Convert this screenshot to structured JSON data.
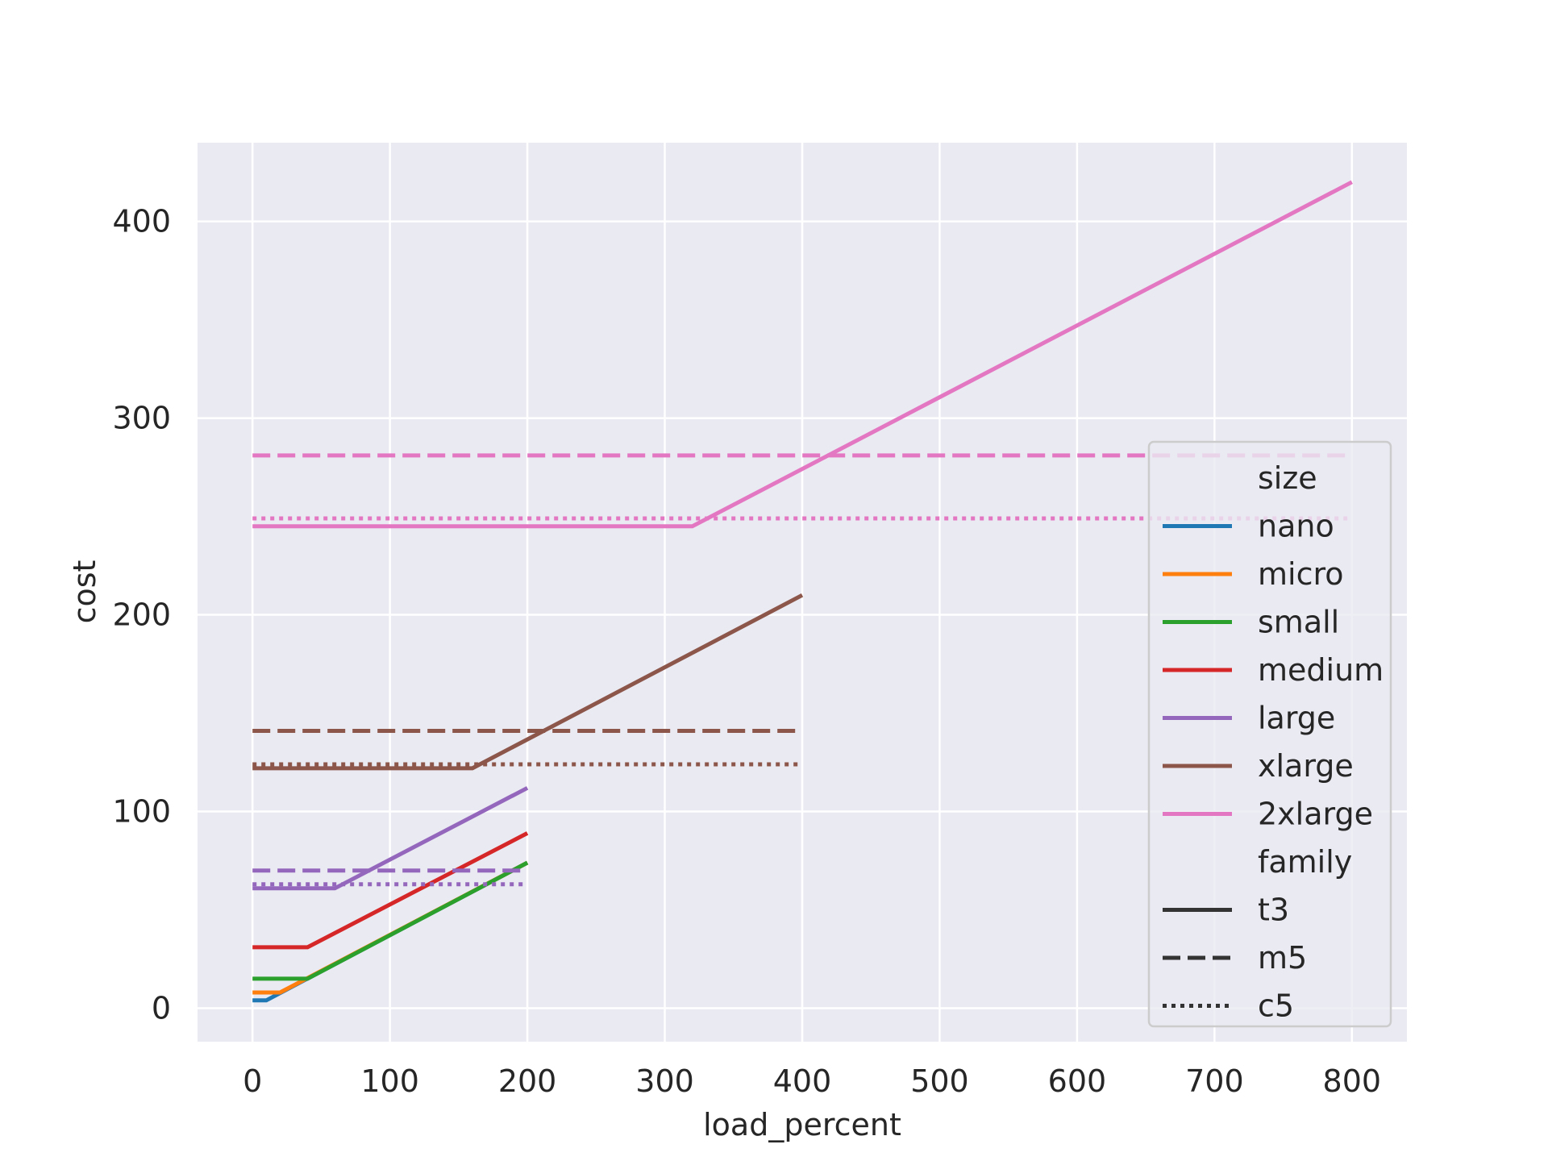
{
  "chart_data": {
    "type": "line",
    "xlabel": "load_percent",
    "ylabel": "cost",
    "xlim": [
      -40,
      840
    ],
    "ylim": [
      -17,
      440
    ],
    "xticks": [
      0,
      100,
      200,
      300,
      400,
      500,
      600,
      700,
      800
    ],
    "yticks": [
      0,
      100,
      200,
      300,
      400
    ],
    "grid": true,
    "legend_position": "lower-right",
    "legend": {
      "size_title": "size",
      "family_title": "family",
      "sizes": [
        {
          "name": "nano",
          "color": "#1f77b4"
        },
        {
          "name": "micro",
          "color": "#ff7f0e"
        },
        {
          "name": "small",
          "color": "#2ca02c"
        },
        {
          "name": "medium",
          "color": "#d62728"
        },
        {
          "name": "large",
          "color": "#9467bd"
        },
        {
          "name": "xlarge",
          "color": "#8c564b"
        },
        {
          "name": "2xlarge",
          "color": "#e377c2"
        }
      ],
      "families": [
        {
          "name": "t3",
          "style": "solid"
        },
        {
          "name": "m5",
          "style": "dashed"
        },
        {
          "name": "c5",
          "style": "dotted"
        }
      ]
    },
    "series": [
      {
        "size": "nano",
        "family": "t3",
        "x": [
          0,
          10,
          200
        ],
        "y": [
          4,
          4,
          74
        ]
      },
      {
        "size": "micro",
        "family": "t3",
        "x": [
          0,
          20,
          200
        ],
        "y": [
          8,
          8,
          74
        ]
      },
      {
        "size": "small",
        "family": "t3",
        "x": [
          0,
          40,
          200
        ],
        "y": [
          15,
          15,
          74
        ]
      },
      {
        "size": "medium",
        "family": "t3",
        "x": [
          0,
          40,
          200
        ],
        "y": [
          31,
          31,
          89
        ]
      },
      {
        "size": "large",
        "family": "t3",
        "x": [
          0,
          60,
          200
        ],
        "y": [
          61,
          61,
          112
        ]
      },
      {
        "size": "large",
        "family": "m5",
        "x": [
          0,
          200
        ],
        "y": [
          70,
          70
        ]
      },
      {
        "size": "large",
        "family": "c5",
        "x": [
          0,
          200
        ],
        "y": [
          63,
          63
        ]
      },
      {
        "size": "xlarge",
        "family": "t3",
        "x": [
          0,
          160,
          400
        ],
        "y": [
          122,
          122,
          210
        ]
      },
      {
        "size": "xlarge",
        "family": "m5",
        "x": [
          0,
          400
        ],
        "y": [
          141,
          141
        ]
      },
      {
        "size": "xlarge",
        "family": "c5",
        "x": [
          0,
          400
        ],
        "y": [
          124,
          124
        ]
      },
      {
        "size": "2xlarge",
        "family": "t3",
        "x": [
          0,
          320,
          800
        ],
        "y": [
          245,
          245,
          420
        ]
      },
      {
        "size": "2xlarge",
        "family": "m5",
        "x": [
          0,
          800
        ],
        "y": [
          281,
          281
        ]
      },
      {
        "size": "2xlarge",
        "family": "c5",
        "x": [
          0,
          800
        ],
        "y": [
          249,
          249
        ]
      }
    ]
  }
}
